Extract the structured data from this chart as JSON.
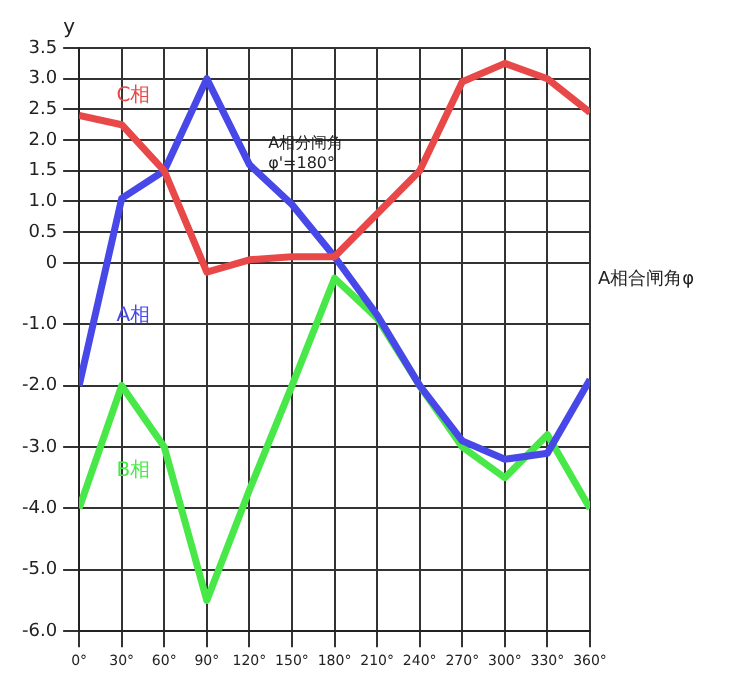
{
  "chart_data": {
    "type": "line",
    "ylabel": "y",
    "xlabel": "A相合闸角φ",
    "annotations": [
      "A相分闸角\nφ'=180°"
    ],
    "x": [
      0,
      30,
      60,
      90,
      120,
      150,
      180,
      210,
      240,
      270,
      300,
      330,
      360
    ],
    "series": [
      {
        "name": "C相",
        "color": "#e84848",
        "values": [
          2.4,
          2.25,
          1.5,
          -0.15,
          0.05,
          0.1,
          0.1,
          0.8,
          1.5,
          2.95,
          3.25,
          3.0,
          2.45
        ]
      },
      {
        "name": "A相",
        "color": "#4848e8",
        "values": [
          -2.0,
          1.05,
          1.5,
          3.0,
          1.6,
          0.95,
          0.1,
          -0.85,
          -2.0,
          -2.9,
          -3.2,
          -3.1,
          -1.9
        ]
      },
      {
        "name": "B相",
        "color": "#48e848",
        "values": [
          -4.0,
          -2.0,
          -3.0,
          -5.5,
          -3.7,
          -2.0,
          -0.25,
          -0.9,
          -2.0,
          -3.0,
          -3.5,
          -2.8,
          -4.0
        ]
      }
    ],
    "xlim": [
      0,
      360
    ],
    "xticks": [
      {
        "value": 0,
        "label": "0°"
      },
      {
        "value": 30,
        "label": "30°"
      },
      {
        "value": 60,
        "label": "60°"
      },
      {
        "value": 90,
        "label": "90°"
      },
      {
        "value": 120,
        "label": "120°"
      },
      {
        "value": 150,
        "label": "150°"
      },
      {
        "value": 180,
        "label": "180°"
      },
      {
        "value": 210,
        "label": "210°"
      },
      {
        "value": 240,
        "label": "240°"
      },
      {
        "value": 270,
        "label": "270°"
      },
      {
        "value": 300,
        "label": "300°"
      },
      {
        "value": 330,
        "label": "330°"
      },
      {
        "value": 360,
        "label": "360°"
      }
    ],
    "ylim": [
      -6,
      3.5
    ],
    "yticks": [
      {
        "value": -6,
        "label": "-6.0"
      },
      {
        "value": -5,
        "label": "-5.0"
      },
      {
        "value": -4,
        "label": "-4.0"
      },
      {
        "value": -3,
        "label": "-3.0"
      },
      {
        "value": -2,
        "label": "-2.0"
      },
      {
        "value": -1,
        "label": "-1.0"
      },
      0,
      0.5,
      {
        "value": 1,
        "label": "1.0"
      },
      1.5,
      {
        "value": 2,
        "label": "2.0"
      },
      2.5,
      {
        "value": 3,
        "label": "3.0"
      },
      3.5
    ],
    "grid": true,
    "legend": false,
    "marker": "none",
    "line_style": "solid"
  }
}
